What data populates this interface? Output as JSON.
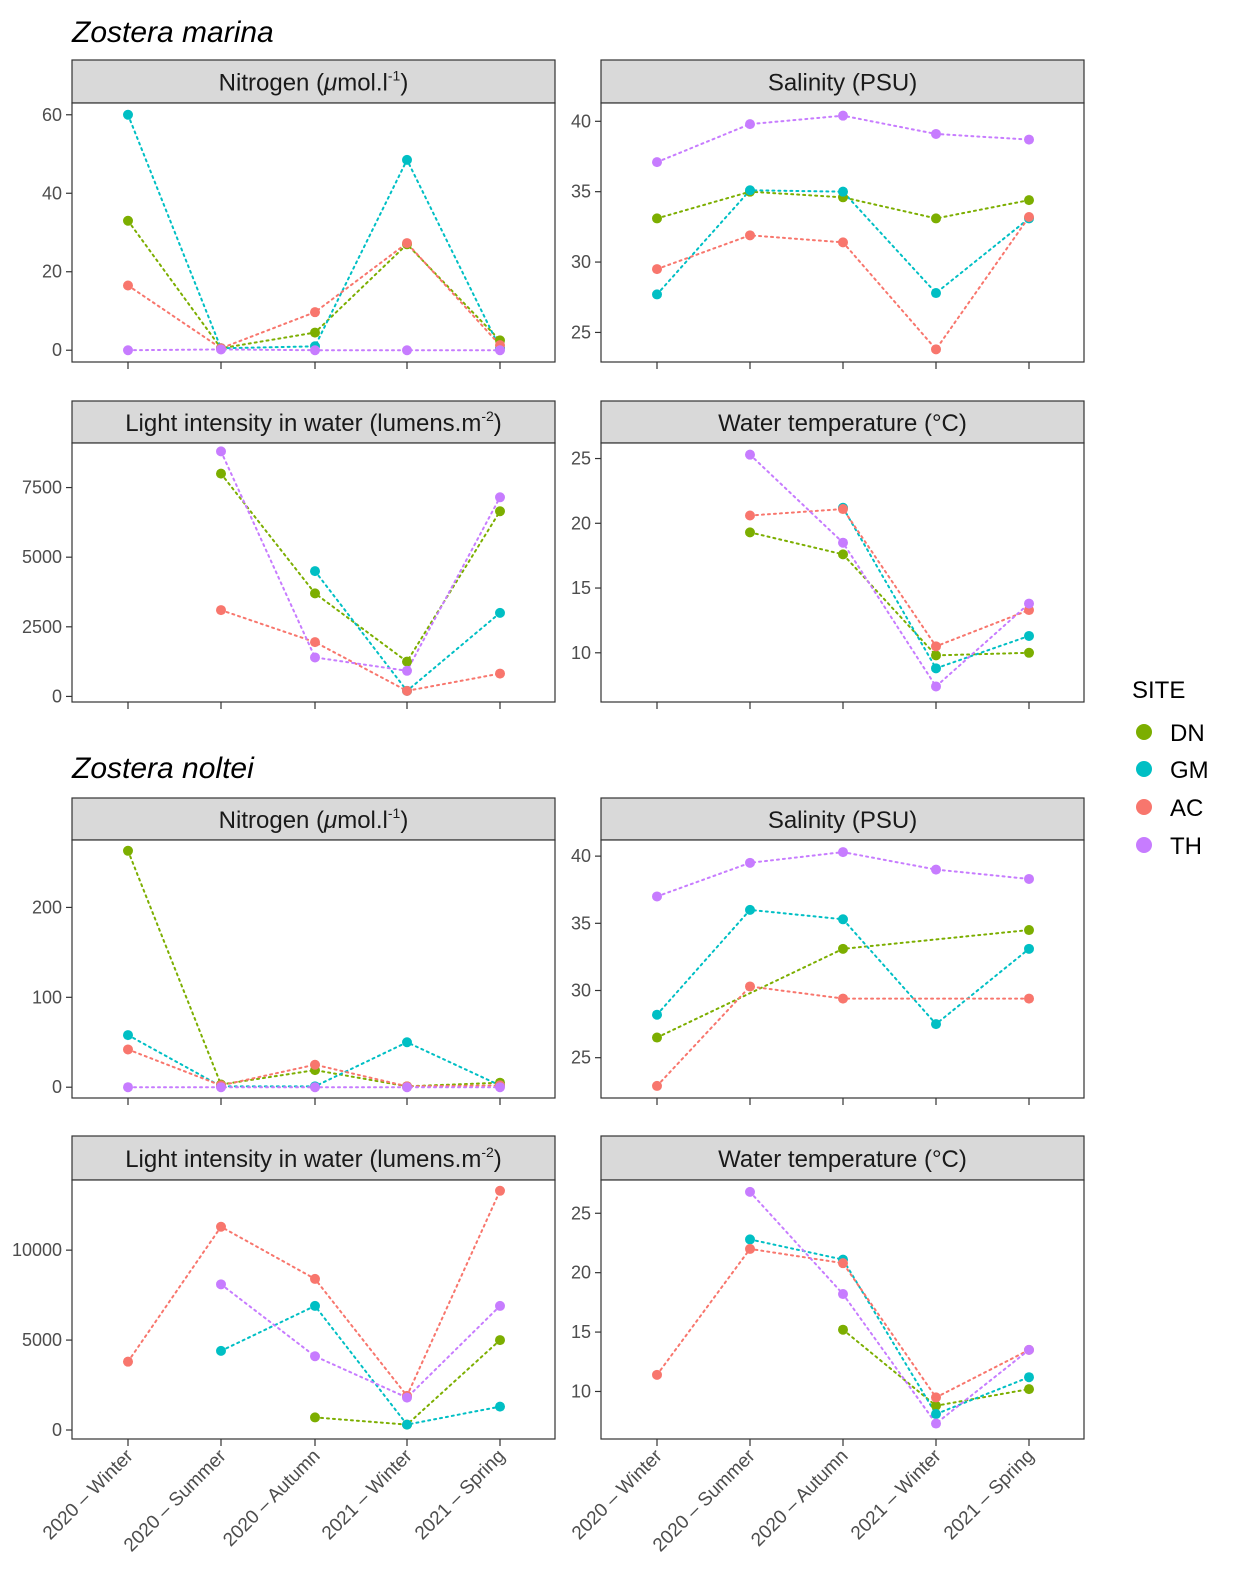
{
  "figure": {
    "sections": [
      {
        "title": "Zostera marina"
      },
      {
        "title": "Zostera noltei"
      }
    ],
    "x_tick_labels": [
      "2020 – Winter",
      "2020 – Summer",
      "2020 – Autumn",
      "2021 – Winter",
      "2021 – Spring"
    ]
  },
  "legend": {
    "title": "SITE",
    "entries": [
      {
        "name": "DN",
        "color": "#7CAE00"
      },
      {
        "name": "GM",
        "color": "#00BFC4"
      },
      {
        "name": "AC",
        "color": "#F8766D"
      },
      {
        "name": "TH",
        "color": "#C77CFF"
      }
    ]
  },
  "chart_data": [
    {
      "type": "line",
      "section": "Zostera marina",
      "title": "Nitrogen (μmol.l-1)",
      "strip": {
        "prefix": "Nitrogen (",
        "unit": "μ",
        "rest": "mol.l",
        "sup": "-1",
        "suffix": ")"
      },
      "categories": [
        "2020 – Winter",
        "2020 – Summer",
        "2020 – Autumn",
        "2021 – Winter",
        "2021 – Spring"
      ],
      "ylim": [
        -3,
        63
      ],
      "yticks": [
        0,
        20,
        40,
        60
      ],
      "series": [
        {
          "name": "DN",
          "values": [
            33,
            0.5,
            4.5,
            27,
            2.5
          ]
        },
        {
          "name": "GM",
          "values": [
            60,
            0.5,
            1,
            48.5,
            0.5
          ]
        },
        {
          "name": "AC",
          "values": [
            16.5,
            0.5,
            9.7,
            27.3,
            1.3
          ]
        },
        {
          "name": "TH",
          "values": [
            0,
            0.2,
            0,
            0,
            0
          ]
        }
      ]
    },
    {
      "type": "line",
      "section": "Zostera marina",
      "title": "Salinity (PSU)",
      "strip": {
        "prefix": "Salinity (PSU)",
        "unit": "",
        "rest": "",
        "sup": "",
        "suffix": ""
      },
      "categories": [
        "2020 – Winter",
        "2020 – Summer",
        "2020 – Autumn",
        "2021 – Winter",
        "2021 – Spring"
      ],
      "ylim": [
        22.9,
        41.3
      ],
      "yticks": [
        25,
        30,
        35,
        40
      ],
      "series": [
        {
          "name": "DN",
          "values": [
            33.1,
            35,
            34.6,
            33.1,
            34.4
          ]
        },
        {
          "name": "GM",
          "values": [
            27.7,
            35.1,
            35,
            27.8,
            33.1
          ]
        },
        {
          "name": "AC",
          "values": [
            29.5,
            31.9,
            31.4,
            23.8,
            33.2
          ]
        },
        {
          "name": "TH",
          "values": [
            37.1,
            39.8,
            40.4,
            39.1,
            38.7
          ]
        }
      ]
    },
    {
      "type": "line",
      "section": "Zostera marina",
      "title": "Light intensity in water (lumens.m-2)",
      "strip": {
        "prefix": "Light intensity in water (lumens.m",
        "unit": "",
        "rest": "",
        "sup": "-2",
        "suffix": ")"
      },
      "categories": [
        "2020 – Winter",
        "2020 – Summer",
        "2020 – Autumn",
        "2021 – Winter",
        "2021 – Spring"
      ],
      "ylim": [
        -200,
        9100
      ],
      "yticks": [
        0,
        2500,
        5000,
        7500
      ],
      "series": [
        {
          "name": "DN",
          "values": [
            null,
            8000,
            3700,
            1250,
            6650
          ]
        },
        {
          "name": "GM",
          "values": [
            null,
            null,
            4500,
            200,
            3000
          ]
        },
        {
          "name": "AC",
          "values": [
            null,
            3100,
            1950,
            200,
            820
          ]
        },
        {
          "name": "TH",
          "values": [
            null,
            8800,
            1400,
            920,
            7150
          ]
        }
      ]
    },
    {
      "type": "line",
      "section": "Zostera marina",
      "title": "Water temperature (°C)",
      "strip": {
        "prefix": "Water temperature (°C)",
        "unit": "",
        "rest": "",
        "sup": "",
        "suffix": ""
      },
      "categories": [
        "2020 – Winter",
        "2020 – Summer",
        "2020 – Autumn",
        "2021 – Winter",
        "2021 – Spring"
      ],
      "ylim": [
        6.2,
        26.2
      ],
      "yticks": [
        10,
        15,
        20,
        25
      ],
      "series": [
        {
          "name": "DN",
          "values": [
            null,
            19.3,
            17.6,
            9.8,
            10
          ]
        },
        {
          "name": "GM",
          "values": [
            null,
            null,
            21.2,
            8.8,
            11.3
          ]
        },
        {
          "name": "AC",
          "values": [
            null,
            20.6,
            21.1,
            10.5,
            13.3
          ]
        },
        {
          "name": "TH",
          "values": [
            null,
            25.3,
            18.5,
            7.4,
            13.8
          ]
        }
      ]
    },
    {
      "type": "line",
      "section": "Zostera noltei",
      "title": "Nitrogen (μmol.l-1)",
      "strip": {
        "prefix": "Nitrogen (",
        "unit": "μ",
        "rest": "mol.l",
        "sup": "-1",
        "suffix": ")"
      },
      "categories": [
        "2020 – Winter",
        "2020 – Summer",
        "2020 – Autumn",
        "2021 – Winter",
        "2021 – Spring"
      ],
      "ylim": [
        -12,
        275
      ],
      "yticks": [
        0,
        100,
        200
      ],
      "series": [
        {
          "name": "DN",
          "values": [
            263,
            3,
            19,
            1,
            5
          ]
        },
        {
          "name": "GM",
          "values": [
            58,
            1,
            1,
            50,
            2
          ]
        },
        {
          "name": "AC",
          "values": [
            42,
            2,
            25,
            1,
            2
          ]
        },
        {
          "name": "TH",
          "values": [
            0,
            0,
            0,
            0,
            0
          ]
        }
      ]
    },
    {
      "type": "line",
      "section": "Zostera noltei",
      "title": "Salinity (PSU)",
      "strip": {
        "prefix": "Salinity (PSU)",
        "unit": "",
        "rest": "",
        "sup": "",
        "suffix": ""
      },
      "categories": [
        "2020 – Winter",
        "2020 – Summer",
        "2020 – Autumn",
        "2021 – Winter",
        "2021 – Spring"
      ],
      "ylim": [
        22,
        41.2
      ],
      "yticks": [
        25,
        30,
        35,
        40
      ],
      "series": [
        {
          "name": "DN",
          "values": [
            26.5,
            null,
            33.1,
            null,
            34.5
          ]
        },
        {
          "name": "GM",
          "values": [
            28.2,
            36,
            35.3,
            27.5,
            33.1
          ]
        },
        {
          "name": "AC",
          "values": [
            22.9,
            30.3,
            29.4,
            null,
            29.4
          ]
        },
        {
          "name": "TH",
          "values": [
            37,
            39.5,
            40.3,
            39,
            38.3
          ]
        }
      ]
    },
    {
      "type": "line",
      "section": "Zostera noltei",
      "title": "Light intensity in water (lumens.m-2)",
      "strip": {
        "prefix": "Light intensity in water (lumens.m",
        "unit": "",
        "rest": "",
        "sup": "-2",
        "suffix": ")"
      },
      "categories": [
        "2020 – Winter",
        "2020 – Summer",
        "2020 – Autumn",
        "2021 – Winter",
        "2021 – Spring"
      ],
      "ylim": [
        -500,
        13900
      ],
      "yticks": [
        0,
        5000,
        10000
      ],
      "series": [
        {
          "name": "DN",
          "values": [
            null,
            null,
            700,
            300,
            5000
          ]
        },
        {
          "name": "GM",
          "values": [
            null,
            4400,
            6900,
            300,
            1300
          ]
        },
        {
          "name": "AC",
          "values": [
            3800,
            11300,
            8400,
            1900,
            13300
          ]
        },
        {
          "name": "TH",
          "values": [
            null,
            8100,
            4100,
            1800,
            6900
          ]
        }
      ]
    },
    {
      "type": "line",
      "section": "Zostera noltei",
      "title": "Water temperature (°C)",
      "strip": {
        "prefix": "Water temperature (°C)",
        "unit": "",
        "rest": "",
        "sup": "",
        "suffix": ""
      },
      "categories": [
        "2020 – Winter",
        "2020 – Summer",
        "2020 – Autumn",
        "2021 – Winter",
        "2021 – Spring"
      ],
      "ylim": [
        6,
        27.8
      ],
      "yticks": [
        10,
        15,
        20,
        25
      ],
      "series": [
        {
          "name": "DN",
          "values": [
            null,
            null,
            15.2,
            8.8,
            10.2
          ]
        },
        {
          "name": "GM",
          "values": [
            null,
            22.8,
            21.1,
            8.1,
            11.2
          ]
        },
        {
          "name": "AC",
          "values": [
            11.4,
            22,
            20.8,
            9.5,
            13.5
          ]
        },
        {
          "name": "TH",
          "values": [
            null,
            26.8,
            18.2,
            7.3,
            13.5
          ]
        }
      ]
    }
  ]
}
